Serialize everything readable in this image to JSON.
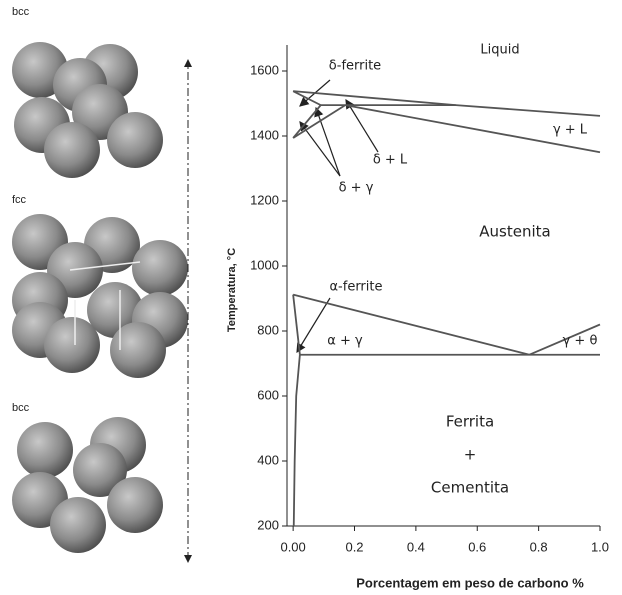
{
  "chart_data": {
    "type": "line",
    "x_label": "Porcentagem em peso de carbono %",
    "y_label": "Temperatura, °C",
    "xlim": [
      -0.02,
      1.0
    ],
    "ylim": [
      200,
      1680
    ],
    "xticks": [
      {
        "value": 0,
        "label": "0.00"
      },
      0.2,
      0.4,
      0.6,
      0.8,
      {
        "value": 1,
        "label": "1.0"
      }
    ],
    "yticks": [
      200,
      400,
      600,
      800,
      1000,
      1200,
      1400,
      1600
    ],
    "series": [
      {
        "color": "#555",
        "x": [
          0,
          0.53,
          1.0
        ],
        "values": [
          1538,
          1495,
          1462
        ]
      },
      {
        "color": "#555",
        "x": [
          0.17,
          1.0
        ],
        "values": [
          1495,
          1350
        ]
      },
      {
        "color": "#555",
        "x": [
          0.09,
          0.53
        ],
        "values": [
          1495,
          1495
        ]
      },
      {
        "color": "#555",
        "x": [
          0,
          0.09
        ],
        "values": [
          1538,
          1495
        ]
      },
      {
        "color": "#555",
        "x": [
          0,
          0.09
        ],
        "values": [
          1394,
          1495
        ]
      },
      {
        "color": "#555",
        "x": [
          0,
          0.17
        ],
        "values": [
          1394,
          1495
        ]
      },
      {
        "color": "#555",
        "x": [
          0,
          0.77
        ],
        "values": [
          912,
          727
        ]
      },
      {
        "color": "#555",
        "x": [
          0.77,
          1.0
        ],
        "values": [
          727,
          820
        ]
      },
      {
        "color": "#555",
        "x": [
          0.022,
          1.0
        ],
        "values": [
          727,
          727
        ]
      },
      {
        "color": "#555",
        "x": [
          0,
          0.022
        ],
        "values": [
          912,
          727
        ]
      },
      {
        "color": "#555",
        "x": [
          0.022,
          0.01,
          0.005,
          0.002
        ],
        "values": [
          727,
          600,
          400,
          200
        ]
      }
    ],
    "annotations": [
      "Liquid",
      "δ-ferrite",
      "γ + L",
      "δ + L",
      "δ + γ",
      "Austenita",
      "α-ferrite",
      "α + γ",
      "γ + θ",
      "Ferrita",
      "+",
      "Cementita"
    ],
    "structures": [
      "bcc",
      "fcc",
      "bcc"
    ]
  }
}
